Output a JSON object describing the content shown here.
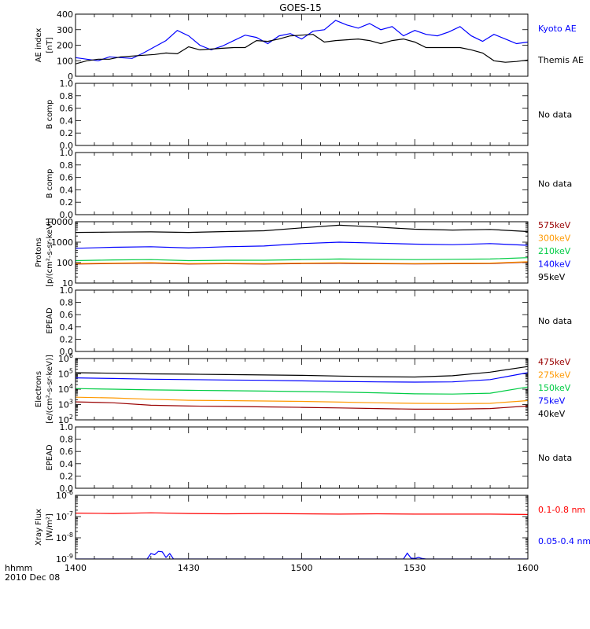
{
  "figure": {
    "title": "GOES-15",
    "time_label": "hhmm",
    "date_label": "2010 Dec 08",
    "x_range": [
      0,
      120
    ],
    "x_ticks": [
      {
        "v": 0,
        "label": "1400"
      },
      {
        "v": 30,
        "label": "1430"
      },
      {
        "v": 60,
        "label": "1500"
      },
      {
        "v": 90,
        "label": "1530"
      },
      {
        "v": 120,
        "label": "1600"
      }
    ]
  },
  "chart_data": [
    {
      "type": "line",
      "panel": "ae",
      "ylabel": [
        "AE index",
        "[nT]"
      ],
      "ylim": [
        0,
        400
      ],
      "y_ticks": [
        0,
        100,
        200,
        300,
        400
      ],
      "series": [
        {
          "name": "Kyoto AE",
          "color": "#0000ff",
          "x": [
            0,
            3,
            6,
            9,
            12,
            15,
            18,
            21,
            24,
            27,
            30,
            33,
            36,
            39,
            42,
            45,
            48,
            51,
            54,
            57,
            60,
            63,
            66,
            69,
            72,
            75,
            78,
            81,
            84,
            87,
            90,
            93,
            96,
            99,
            102,
            105,
            108,
            111,
            114,
            117,
            120
          ],
          "y": [
            120,
            110,
            100,
            125,
            120,
            115,
            150,
            190,
            230,
            295,
            260,
            200,
            170,
            195,
            230,
            265,
            250,
            210,
            260,
            275,
            240,
            290,
            300,
            360,
            330,
            310,
            340,
            300,
            320,
            260,
            295,
            270,
            260,
            285,
            320,
            260,
            225,
            270,
            240,
            210,
            220
          ]
        },
        {
          "name": "Themis AE",
          "color": "#000000",
          "x": [
            0,
            3,
            6,
            9,
            12,
            15,
            18,
            21,
            24,
            27,
            30,
            33,
            36,
            39,
            42,
            45,
            48,
            51,
            54,
            57,
            60,
            63,
            66,
            69,
            72,
            75,
            78,
            81,
            84,
            87,
            90,
            93,
            96,
            99,
            102,
            105,
            108,
            111,
            114,
            117,
            120
          ],
          "y": [
            80,
            100,
            110,
            110,
            125,
            130,
            135,
            140,
            150,
            145,
            190,
            170,
            175,
            180,
            185,
            185,
            230,
            225,
            240,
            260,
            265,
            270,
            220,
            230,
            235,
            240,
            230,
            210,
            230,
            240,
            220,
            185,
            185,
            185,
            185,
            170,
            150,
            100,
            90,
            95,
            105
          ]
        }
      ]
    },
    {
      "type": "line",
      "panel": "b1",
      "ylabel": [
        "B comp"
      ],
      "ylim": [
        0,
        1
      ],
      "y_ticks": [
        0,
        0.2,
        0.4,
        0.6,
        0.8,
        1.0
      ],
      "y_tick_labels": [
        "0.0",
        "0.2",
        "0.4",
        "0.6",
        "0.8",
        "1.0"
      ],
      "status": "No data"
    },
    {
      "type": "line",
      "panel": "b2",
      "ylabel": [
        "B comp"
      ],
      "ylim": [
        0,
        1
      ],
      "y_ticks": [
        0,
        0.2,
        0.4,
        0.6,
        0.8,
        1.0
      ],
      "y_tick_labels": [
        "0.0",
        "0.2",
        "0.4",
        "0.6",
        "0.8",
        "1.0"
      ],
      "status": "No data"
    },
    {
      "type": "line",
      "panel": "protons",
      "ylabel": [
        "Protons",
        "[p/(cm²-s-sr-keV)]"
      ],
      "scale": "log",
      "ylim": [
        10,
        10000
      ],
      "y_ticks": [
        10,
        100,
        1000,
        10000
      ],
      "y_tick_labels": [
        "10",
        "100",
        "1000",
        "10000"
      ],
      "series": [
        {
          "name": "575keV",
          "color": "#990000",
          "x": [
            0,
            10,
            20,
            30,
            40,
            50,
            60,
            70,
            80,
            90,
            100,
            110,
            120
          ],
          "y": [
            85,
            90,
            95,
            85,
            88,
            85,
            90,
            92,
            88,
            86,
            88,
            90,
            105
          ]
        },
        {
          "name": "300keV",
          "color": "#ff9900",
          "x": [
            0,
            10,
            20,
            30,
            40,
            50,
            60,
            70,
            80,
            90,
            100,
            110,
            120
          ],
          "y": [
            90,
            95,
            100,
            90,
            92,
            90,
            95,
            98,
            92,
            90,
            92,
            95,
            110
          ]
        },
        {
          "name": "210keV",
          "color": "#00cc44",
          "x": [
            0,
            10,
            20,
            30,
            40,
            50,
            60,
            70,
            80,
            90,
            100,
            110,
            120
          ],
          "y": [
            125,
            135,
            140,
            125,
            130,
            130,
            140,
            150,
            145,
            140,
            145,
            150,
            175
          ]
        },
        {
          "name": "140keV",
          "color": "#0000ff",
          "x": [
            0,
            10,
            20,
            30,
            40,
            50,
            60,
            70,
            80,
            90,
            100,
            110,
            120
          ],
          "y": [
            500,
            560,
            600,
            520,
            600,
            650,
            850,
            1000,
            900,
            800,
            750,
            850,
            700
          ]
        },
        {
          "name": "95keV",
          "color": "#000000",
          "x": [
            0,
            10,
            20,
            30,
            40,
            50,
            60,
            70,
            80,
            90,
            100,
            110,
            120
          ],
          "y": [
            3000,
            3100,
            3200,
            3000,
            3300,
            3600,
            5000,
            6800,
            5500,
            4300,
            3900,
            4200,
            3300
          ]
        }
      ]
    },
    {
      "type": "line",
      "panel": "epead1",
      "ylabel": [
        "EPEAD"
      ],
      "ylim": [
        0,
        1
      ],
      "y_ticks": [
        0,
        0.2,
        0.4,
        0.6,
        0.8,
        1.0
      ],
      "y_tick_labels": [
        "0.0",
        "0.2",
        "0.4",
        "0.6",
        "0.8",
        "1.0"
      ],
      "status": "No data"
    },
    {
      "type": "line",
      "panel": "electrons",
      "ylabel": [
        "Electrons",
        "[e/(cm²-s-sr-keV)]"
      ],
      "scale": "log",
      "ylim": [
        100,
        1000000
      ],
      "y_ticks": [
        100,
        1000,
        10000,
        100000,
        1000000
      ],
      "y_tick_exps": [
        "2",
        "3",
        "4",
        "5",
        "6"
      ],
      "series": [
        {
          "name": "475keV",
          "color": "#990000",
          "x": [
            0,
            10,
            20,
            30,
            40,
            50,
            60,
            70,
            80,
            90,
            100,
            110,
            120
          ],
          "y": [
            1500,
            1300,
            900,
            800,
            750,
            700,
            650,
            600,
            550,
            500,
            500,
            550,
            800
          ]
        },
        {
          "name": "275keV",
          "color": "#ff9900",
          "x": [
            0,
            10,
            20,
            30,
            40,
            50,
            60,
            70,
            80,
            90,
            100,
            110,
            120
          ],
          "y": [
            3000,
            2700,
            2200,
            1900,
            1800,
            1700,
            1600,
            1450,
            1300,
            1200,
            1150,
            1200,
            1800
          ]
        },
        {
          "name": "150keV",
          "color": "#00cc44",
          "x": [
            0,
            10,
            20,
            30,
            40,
            50,
            60,
            70,
            80,
            90,
            100,
            110,
            120
          ],
          "y": [
            11000,
            10000,
            9000,
            8500,
            8000,
            7500,
            7000,
            6500,
            5800,
            5000,
            4800,
            5500,
            14000
          ]
        },
        {
          "name": "75keV",
          "color": "#0000ff",
          "x": [
            0,
            10,
            20,
            30,
            40,
            50,
            60,
            70,
            80,
            90,
            100,
            110,
            120
          ],
          "y": [
            55000,
            50000,
            45000,
            42000,
            40000,
            38000,
            35000,
            32000,
            30000,
            29000,
            30000,
            42000,
            120000
          ]
        },
        {
          "name": "40keV",
          "color": "#000000",
          "x": [
            0,
            10,
            20,
            30,
            40,
            50,
            60,
            70,
            80,
            90,
            100,
            110,
            120
          ],
          "y": [
            120000,
            110000,
            100000,
            95000,
            90000,
            85000,
            80000,
            72000,
            65000,
            62000,
            75000,
            130000,
            300000
          ]
        }
      ]
    },
    {
      "type": "line",
      "panel": "epead2",
      "ylabel": [
        "EPEAD"
      ],
      "ylim": [
        0,
        1
      ],
      "y_ticks": [
        0,
        0.2,
        0.4,
        0.6,
        0.8,
        1.0
      ],
      "y_tick_labels": [
        "0.0",
        "0.2",
        "0.4",
        "0.6",
        "0.8",
        "1.0"
      ],
      "status": "No data"
    },
    {
      "type": "line",
      "panel": "xray",
      "ylabel": [
        "Xray Flux",
        "[W/m²]"
      ],
      "scale": "log",
      "ylim": [
        1e-09,
        1e-06
      ],
      "y_ticks": [
        1e-09,
        1e-08,
        1e-07,
        1e-06
      ],
      "y_tick_exps": [
        "-9",
        "-8",
        "-7",
        "-6"
      ],
      "series": [
        {
          "name": "0.1-0.8 nm",
          "color": "#ff0000",
          "x": [
            0,
            10,
            20,
            30,
            40,
            50,
            60,
            70,
            80,
            90,
            100,
            110,
            120
          ],
          "y": [
            1.45e-07,
            1.4e-07,
            1.5e-07,
            1.4e-07,
            1.35e-07,
            1.4e-07,
            1.35e-07,
            1.3e-07,
            1.35e-07,
            1.3e-07,
            1.3e-07,
            1.3e-07,
            1.25e-07
          ]
        },
        {
          "name": "0.05-0.4 nm",
          "color": "#0000ff",
          "x": [
            0,
            4,
            5,
            6,
            18,
            19,
            20,
            21,
            22,
            23,
            24,
            25,
            26,
            27,
            45,
            46,
            47,
            56,
            57,
            86,
            87,
            88,
            89,
            90,
            91,
            92,
            93,
            110,
            111,
            120
          ],
          "y": [
            8e-10,
            8e-10,
            1e-09,
            8e-10,
            8e-10,
            1e-09,
            1.8e-09,
            1.6e-09,
            2.3e-09,
            2.2e-09,
            1.2e-09,
            1.8e-09,
            9e-10,
            8e-10,
            8e-10,
            1e-09,
            8e-10,
            8e-10,
            1e-09,
            8e-10,
            1e-09,
            1.9e-09,
            1.1e-09,
            1.05e-09,
            1.2e-09,
            1.05e-09,
            8e-10,
            8e-10,
            1e-09,
            8e-10
          ]
        }
      ]
    }
  ]
}
